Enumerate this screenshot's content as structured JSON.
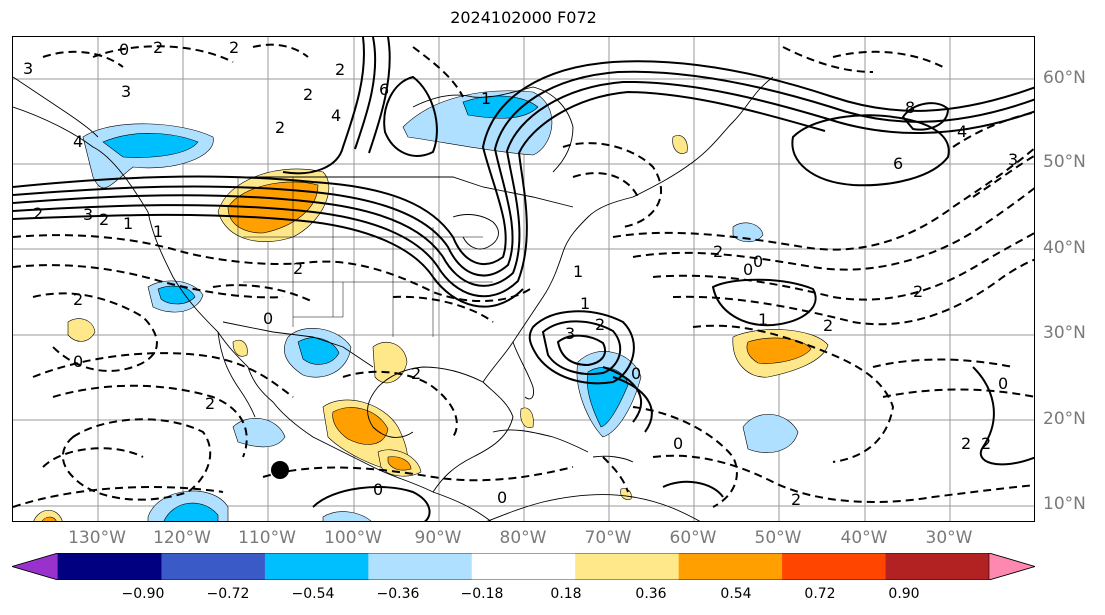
{
  "title": "2024102000 F072",
  "lat_labels": [
    "60°N",
    "50°N",
    "40°N",
    "30°N",
    "20°N",
    "10°N"
  ],
  "lon_labels": [
    "130°W",
    "120°W",
    "110°W",
    "100°W",
    "90°W",
    "80°W",
    "70°W",
    "60°W",
    "50°W",
    "40°W",
    "30°W"
  ],
  "colorbar": {
    "tick_labels": [
      "−0.90",
      "−0.72",
      "−0.54",
      "−0.36",
      "−0.18",
      "0.18",
      "0.36",
      "0.54",
      "0.72",
      "0.90"
    ],
    "colors": [
      "#9932cc",
      "#000080",
      "#3a5ac8",
      "#00bfff",
      "#b0e0ff",
      "#ffffff",
      "#ffe88a",
      "#ffa000",
      "#ff4500",
      "#b22222",
      "#ff88b0"
    ]
  },
  "contour_labels": [
    "2",
    "0",
    "2",
    "3",
    "4",
    "6",
    "2",
    "4",
    "3",
    "2",
    "1",
    "3",
    "2",
    "1",
    "0",
    "2",
    "2",
    "0",
    "2",
    "2",
    "3",
    "2",
    "1",
    "1",
    "0",
    "2",
    "0",
    "2",
    "8",
    "6",
    "4",
    "3",
    "2",
    "1",
    "0",
    "2",
    "2",
    "0",
    "2",
    "0",
    "2",
    "2",
    "1",
    "0",
    "0"
  ]
}
